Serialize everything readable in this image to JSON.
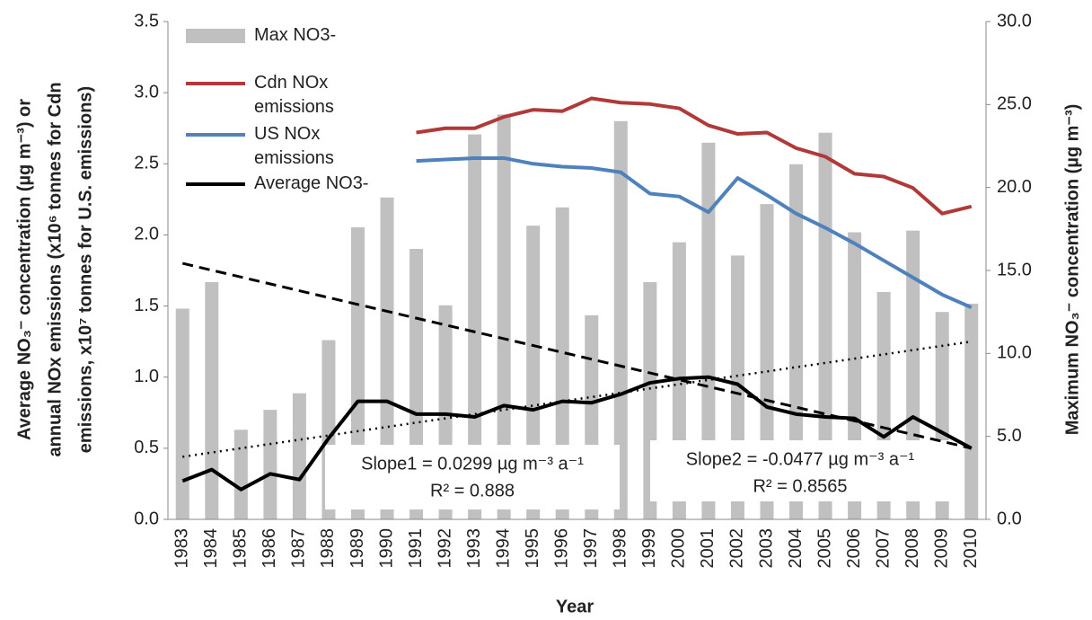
{
  "chart_data": {
    "type": "bar",
    "categories": [
      "1983",
      "1984",
      "1985",
      "1986",
      "1987",
      "1988",
      "1989",
      "1990",
      "1991",
      "1992",
      "1993",
      "1994",
      "1995",
      "1996",
      "1997",
      "1998",
      "1999",
      "2000",
      "2001",
      "2002",
      "2003",
      "2004",
      "2005",
      "2006",
      "2007",
      "2008",
      "2009",
      "2010"
    ],
    "series": [
      {
        "name": "Max NO3-",
        "type": "bar",
        "axis": "y2",
        "color": "#c0c0c0",
        "values": [
          12.7,
          14.3,
          5.4,
          6.6,
          7.6,
          10.8,
          17.6,
          19.4,
          16.3,
          12.9,
          23.2,
          24.4,
          17.7,
          18.8,
          12.3,
          24.0,
          14.3,
          16.7,
          22.7,
          15.9,
          19.0,
          21.4,
          23.3,
          17.3,
          13.7,
          17.4,
          12.5,
          13.0
        ]
      },
      {
        "name": "Cdn NOx emissions",
        "type": "line",
        "color": "#b03a3a",
        "values": [
          null,
          null,
          null,
          null,
          null,
          null,
          null,
          null,
          2.72,
          2.75,
          2.75,
          2.83,
          2.88,
          2.87,
          2.96,
          2.93,
          2.92,
          2.89,
          2.77,
          2.71,
          2.72,
          2.61,
          2.55,
          2.43,
          2.41,
          2.33,
          2.15,
          2.2
        ]
      },
      {
        "name": "US NOx emissions",
        "type": "line",
        "color": "#4f81bd",
        "values": [
          null,
          null,
          null,
          null,
          null,
          null,
          null,
          null,
          2.52,
          2.53,
          2.54,
          2.54,
          2.5,
          2.48,
          2.47,
          2.44,
          2.29,
          2.27,
          2.16,
          2.4,
          2.28,
          2.15,
          2.05,
          1.94,
          1.82,
          1.7,
          1.58,
          1.49
        ]
      },
      {
        "name": "Average NO3-",
        "type": "line",
        "color": "#000000",
        "values": [
          0.27,
          0.35,
          0.21,
          0.32,
          0.28,
          0.57,
          0.83,
          0.83,
          0.74,
          0.74,
          0.72,
          0.8,
          0.77,
          0.83,
          0.82,
          0.88,
          0.96,
          0.99,
          1.0,
          0.95,
          0.79,
          0.74,
          0.72,
          0.71,
          0.58,
          0.72,
          0.61,
          0.5
        ]
      }
    ],
    "trendlines": [
      {
        "dash": "dashed",
        "values": [
          1.8,
          0.5
        ]
      },
      {
        "dash": "dotted",
        "values": [
          0.44,
          1.25
        ]
      }
    ],
    "annotations": [
      {
        "text": "Slope1 = 0.0299 µg m⁻³ a⁻¹",
        "r2": "R² = 0.888"
      },
      {
        "text": "Slope2 = -0.0477 µg m⁻³ a⁻¹",
        "r2": "R² = 0.8565"
      }
    ],
    "ylabel": [
      "Average NO₃⁻ concentration (µg m⁻³)  or",
      "annual NOx emissions (x10⁶ tonnes for Cdn",
      "emissions, x10⁷ tonnes for U.S. emissions)"
    ],
    "y2label": "Maximum NO₃⁻ concentration (µg m⁻³)",
    "xlabel": "Year",
    "ylim": [
      0,
      3.5
    ],
    "yticks": [
      {
        "value": 0,
        "label": "0.0"
      },
      {
        "value": 0.5,
        "label": "0.5"
      },
      {
        "value": 1,
        "label": "1.0"
      },
      {
        "value": 1.5,
        "label": "1.5"
      },
      {
        "value": 2,
        "label": "2.0"
      },
      {
        "value": 2.5,
        "label": "2.5"
      },
      {
        "value": 3,
        "label": "3.0"
      },
      {
        "value": 3.5,
        "label": "3.5"
      }
    ],
    "y2lim": [
      0,
      30
    ],
    "y2ticks": [
      {
        "value": 0,
        "label": "0.0"
      },
      {
        "value": 5,
        "label": "5.0"
      },
      {
        "value": 10,
        "label": "10.0"
      },
      {
        "value": 15,
        "label": "15.0"
      },
      {
        "value": 20,
        "label": "20.0"
      },
      {
        "value": 25,
        "label": "25.0"
      },
      {
        "value": 30,
        "label": "30.0"
      }
    ],
    "legend": "upper left",
    "grid": false
  }
}
